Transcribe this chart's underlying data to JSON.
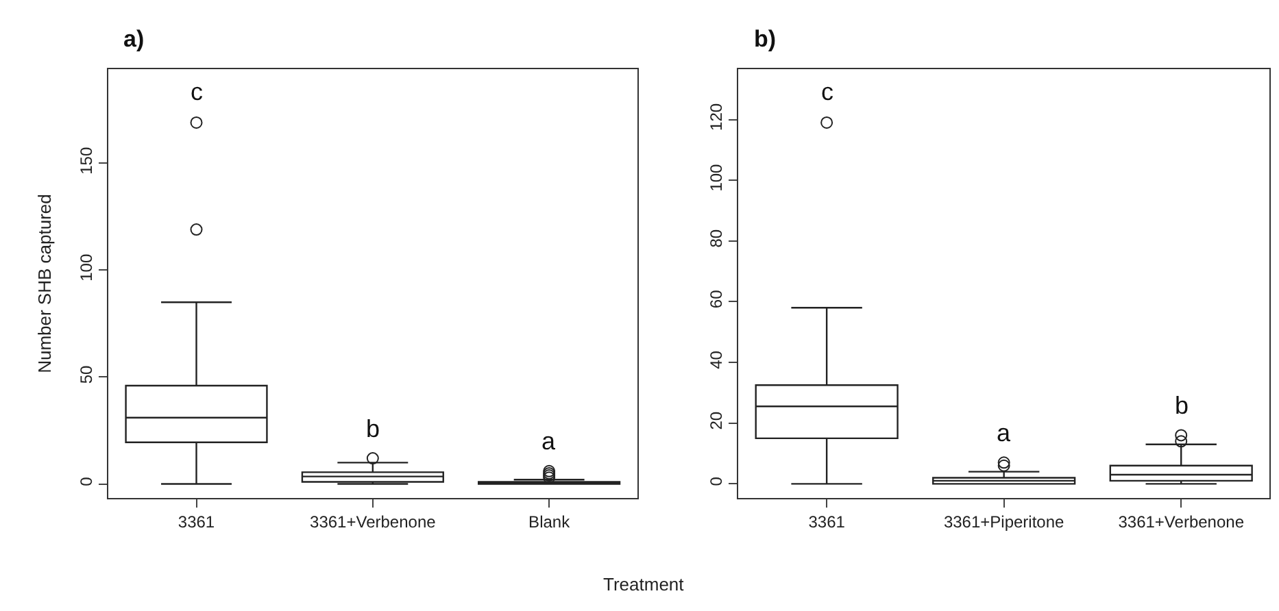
{
  "chart_data": [
    {
      "type": "box",
      "title": "a)",
      "xlabel": "Treatment",
      "ylabel": "Number SHB captured",
      "categories": [
        "3361",
        "3361+Verbenone",
        "Blank"
      ],
      "boxes": [
        {
          "low": 0,
          "q1": 19.5,
          "median": 31,
          "q3": 46,
          "high": 85,
          "outliers": [
            119,
            169
          ]
        },
        {
          "low": 0,
          "q1": 1,
          "median": 3.5,
          "q3": 5.5,
          "high": 10,
          "outliers": [
            12
          ]
        },
        {
          "low": 0,
          "q1": 0,
          "median": 0.5,
          "q3": 1,
          "high": 2,
          "outliers": [
            3,
            4,
            5,
            6
          ]
        }
      ],
      "annotations": [
        "c",
        "b",
        "a"
      ],
      "ylim": [
        -6.6,
        194
      ],
      "yticks": [
        0,
        50,
        100,
        150
      ]
    },
    {
      "type": "box",
      "title": "b)",
      "categories": [
        "3361",
        "3361+Piperitone",
        "3361+Verbenone"
      ],
      "boxes": [
        {
          "low": 0,
          "q1": 15,
          "median": 25.5,
          "q3": 32.5,
          "high": 58,
          "outliers": [
            119
          ]
        },
        {
          "low": 0,
          "q1": 0,
          "median": 1,
          "q3": 2,
          "high": 4,
          "outliers": [
            6,
            7
          ]
        },
        {
          "low": 0,
          "q1": 1,
          "median": 3,
          "q3": 6,
          "high": 13,
          "outliers": [
            14,
            16
          ]
        }
      ],
      "annotations": [
        "c",
        "a",
        "b"
      ],
      "ylim": [
        -4.7,
        136.6
      ],
      "yticks": [
        0,
        20,
        40,
        60,
        80,
        100,
        120
      ]
    }
  ]
}
